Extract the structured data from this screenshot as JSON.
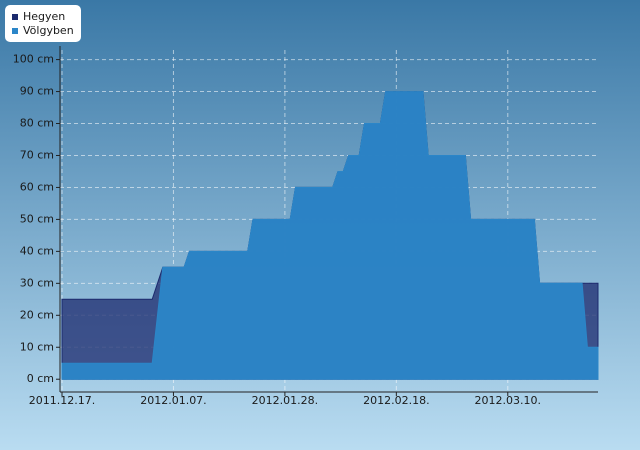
{
  "chart_data": {
    "type": "area",
    "x": [
      "2011.12.17.",
      "2012.01.03.",
      "2012.01.05.",
      "2012.01.09.",
      "2012.01.10.",
      "2012.01.21.",
      "2012.01.22.",
      "2012.01.29.",
      "2012.01.30.",
      "2012.02.06.",
      "2012.02.07.",
      "2012.02.08.",
      "2012.02.09.",
      "2012.02.11.",
      "2012.02.12.",
      "2012.02.15.",
      "2012.02.16.",
      "2012.02.23.",
      "2012.02.24.",
      "2012.03.02.",
      "2012.03.03.",
      "2012.03.15.",
      "2012.03.16.",
      "2012.03.24.",
      "2012.03.25.",
      "2012.03.27."
    ],
    "series": [
      {
        "name": "Hegyen",
        "color": "#1c2a6e",
        "values": [
          25,
          25,
          35,
          35,
          40,
          40,
          50,
          50,
          60,
          60,
          65,
          65,
          70,
          70,
          80,
          80,
          90,
          90,
          70,
          70,
          50,
          50,
          30,
          30,
          30,
          30
        ]
      },
      {
        "name": "Völgyben",
        "color": "#2b86c8",
        "values": [
          5,
          5,
          35,
          35,
          40,
          40,
          50,
          50,
          60,
          60,
          65,
          65,
          70,
          70,
          80,
          80,
          90,
          90,
          70,
          70,
          50,
          50,
          30,
          30,
          10,
          10
        ]
      }
    ],
    "xlim": [
      "2011.12.17.",
      "2012.03.27."
    ],
    "xticks": [
      "2011.12.17.",
      "2012.01.07.",
      "2012.01.28.",
      "2012.02.18.",
      "2012.03.10."
    ],
    "ylim": [
      -4,
      103
    ],
    "yticks": [
      {
        "value": 0,
        "label": "0 cm"
      },
      {
        "value": 10,
        "label": "10 cm"
      },
      {
        "value": 20,
        "label": "20 cm"
      },
      {
        "value": 30,
        "label": "30 cm"
      },
      {
        "value": 40,
        "label": "40 cm"
      },
      {
        "value": 50,
        "label": "50 cm"
      },
      {
        "value": 60,
        "label": "60 cm"
      },
      {
        "value": 70,
        "label": "70 cm"
      },
      {
        "value": 80,
        "label": "80 cm"
      },
      {
        "value": 90,
        "label": "90 cm"
      },
      {
        "value": 100,
        "label": "100 cm"
      }
    ],
    "grid": true,
    "legend": "top-left"
  }
}
